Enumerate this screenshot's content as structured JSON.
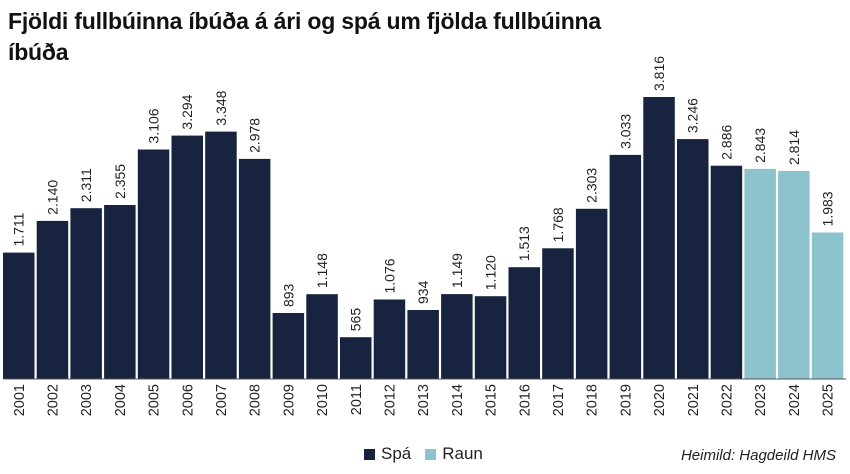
{
  "chart_data": {
    "type": "bar",
    "title": "Fjöldi fullbúinna íbúða á ári og spá um fjölda fullbúinna íbúða",
    "categories": [
      "2001",
      "2002",
      "2003",
      "2004",
      "2005",
      "2006",
      "2007",
      "2008",
      "2009",
      "2010",
      "2011",
      "2012",
      "2013",
      "2014",
      "2015",
      "2016",
      "2017",
      "2018",
      "2019",
      "2020",
      "2021",
      "2022",
      "2023",
      "2024",
      "2025"
    ],
    "values": [
      1711,
      2140,
      2311,
      2355,
      3106,
      3294,
      3348,
      2978,
      893,
      1148,
      565,
      1076,
      934,
      1149,
      1120,
      1513,
      1768,
      2303,
      3033,
      3816,
      3246,
      2886,
      2843,
      2814,
      1983
    ],
    "value_labels": [
      "1.711",
      "2.140",
      "2.311",
      "2.355",
      "3.106",
      "3.294",
      "3.348",
      "2.978",
      "893",
      "1.148",
      "565",
      "1.076",
      "934",
      "1.149",
      "1.120",
      "1.513",
      "1.768",
      "2.303",
      "3.033",
      "3.816",
      "3.246",
      "2.886",
      "2.843",
      "2.814",
      "1.983"
    ],
    "series_of_bar": [
      "Spá",
      "Spá",
      "Spá",
      "Spá",
      "Spá",
      "Spá",
      "Spá",
      "Spá",
      "Spá",
      "Spá",
      "Spá",
      "Spá",
      "Spá",
      "Spá",
      "Spá",
      "Spá",
      "Spá",
      "Spá",
      "Spá",
      "Spá",
      "Spá",
      "Spá",
      "Raun",
      "Raun",
      "Raun"
    ],
    "series": [
      {
        "name": "Spá",
        "color": "#17233f"
      },
      {
        "name": "Raun",
        "color": "#8cc3cc"
      }
    ],
    "ylim": [
      0,
      3816
    ],
    "grid": false,
    "legend_position": "bottom-center",
    "source": "Heimild: Hagdeild HMS"
  },
  "legend": {
    "spa_label": "Spá",
    "raun_label": "Raun"
  }
}
